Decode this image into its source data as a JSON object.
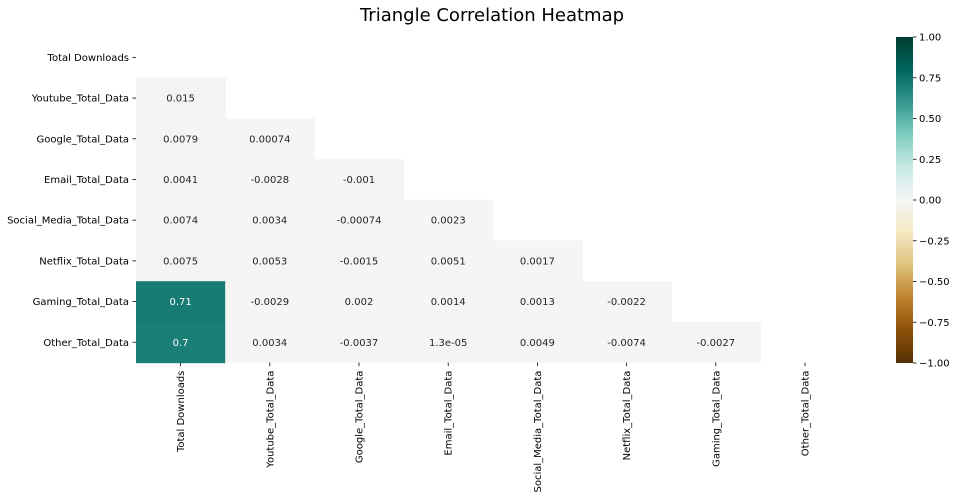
{
  "chart_data": {
    "type": "heatmap",
    "title": "Triangle Correlation Heatmap",
    "variables": [
      "Total Downloads",
      "Youtube_Total_Data",
      "Google_Total_Data",
      "Email_Total_Data",
      "Social_Media_Total_Data",
      "Netflix_Total_Data",
      "Gaming_Total_Data",
      "Other_Total_Data"
    ],
    "mask": "upper-triangle-including-diagonal",
    "values": [
      [
        null,
        null,
        null,
        null,
        null,
        null,
        null,
        null
      ],
      [
        0.015,
        null,
        null,
        null,
        null,
        null,
        null,
        null
      ],
      [
        0.0079,
        0.00074,
        null,
        null,
        null,
        null,
        null,
        null
      ],
      [
        0.0041,
        -0.0028,
        -0.001,
        null,
        null,
        null,
        null,
        null
      ],
      [
        0.0074,
        0.0034,
        -0.00074,
        0.0023,
        null,
        null,
        null,
        null
      ],
      [
        0.0075,
        0.0053,
        -0.0015,
        0.0051,
        0.0017,
        null,
        null,
        null
      ],
      [
        0.71,
        -0.0029,
        0.002,
        0.0014,
        0.0013,
        -0.0022,
        null,
        null
      ],
      [
        0.7,
        0.0034,
        -0.0037,
        1.3e-05,
        0.0049,
        -0.0074,
        -0.0027,
        null
      ]
    ],
    "annotations": [
      [
        null,
        null,
        null,
        null,
        null,
        null,
        null,
        null
      ],
      [
        "0.015",
        null,
        null,
        null,
        null,
        null,
        null,
        null
      ],
      [
        "0.0079",
        "0.00074",
        null,
        null,
        null,
        null,
        null,
        null
      ],
      [
        "0.0041",
        "-0.0028",
        "-0.001",
        null,
        null,
        null,
        null,
        null
      ],
      [
        "0.0074",
        "0.0034",
        "-0.00074",
        "0.0023",
        null,
        null,
        null,
        null
      ],
      [
        "0.0075",
        "0.0053",
        "-0.0015",
        "0.0051",
        "0.0017",
        null,
        null,
        null
      ],
      [
        "0.71",
        "-0.0029",
        "0.002",
        "0.0014",
        "0.0013",
        "-0.0022",
        null,
        null
      ],
      [
        "0.7",
        "0.0034",
        "-0.0037",
        "1.3e-05",
        "0.0049",
        "-0.0074",
        "-0.0027",
        null
      ]
    ],
    "vmin": -1,
    "vmax": 1,
    "colormap": "BrBG",
    "colormap_stops": [
      "#543005",
      "#8c510a",
      "#bf812d",
      "#dfc27d",
      "#f6e8c3",
      "#f5f5f5",
      "#c7eae5",
      "#80cdc1",
      "#35978f",
      "#01665e",
      "#003c30"
    ],
    "colorbar_ticks": [
      "1.00",
      "0.75",
      "0.50",
      "0.25",
      "0.00",
      "−0.25",
      "−0.50",
      "−0.75",
      "−1.00"
    ],
    "colorbar_tick_values": [
      1,
      0.75,
      0.5,
      0.25,
      0,
      -0.25,
      -0.5,
      -0.75,
      -1
    ],
    "grid": false,
    "legend": "colorbar-right"
  }
}
